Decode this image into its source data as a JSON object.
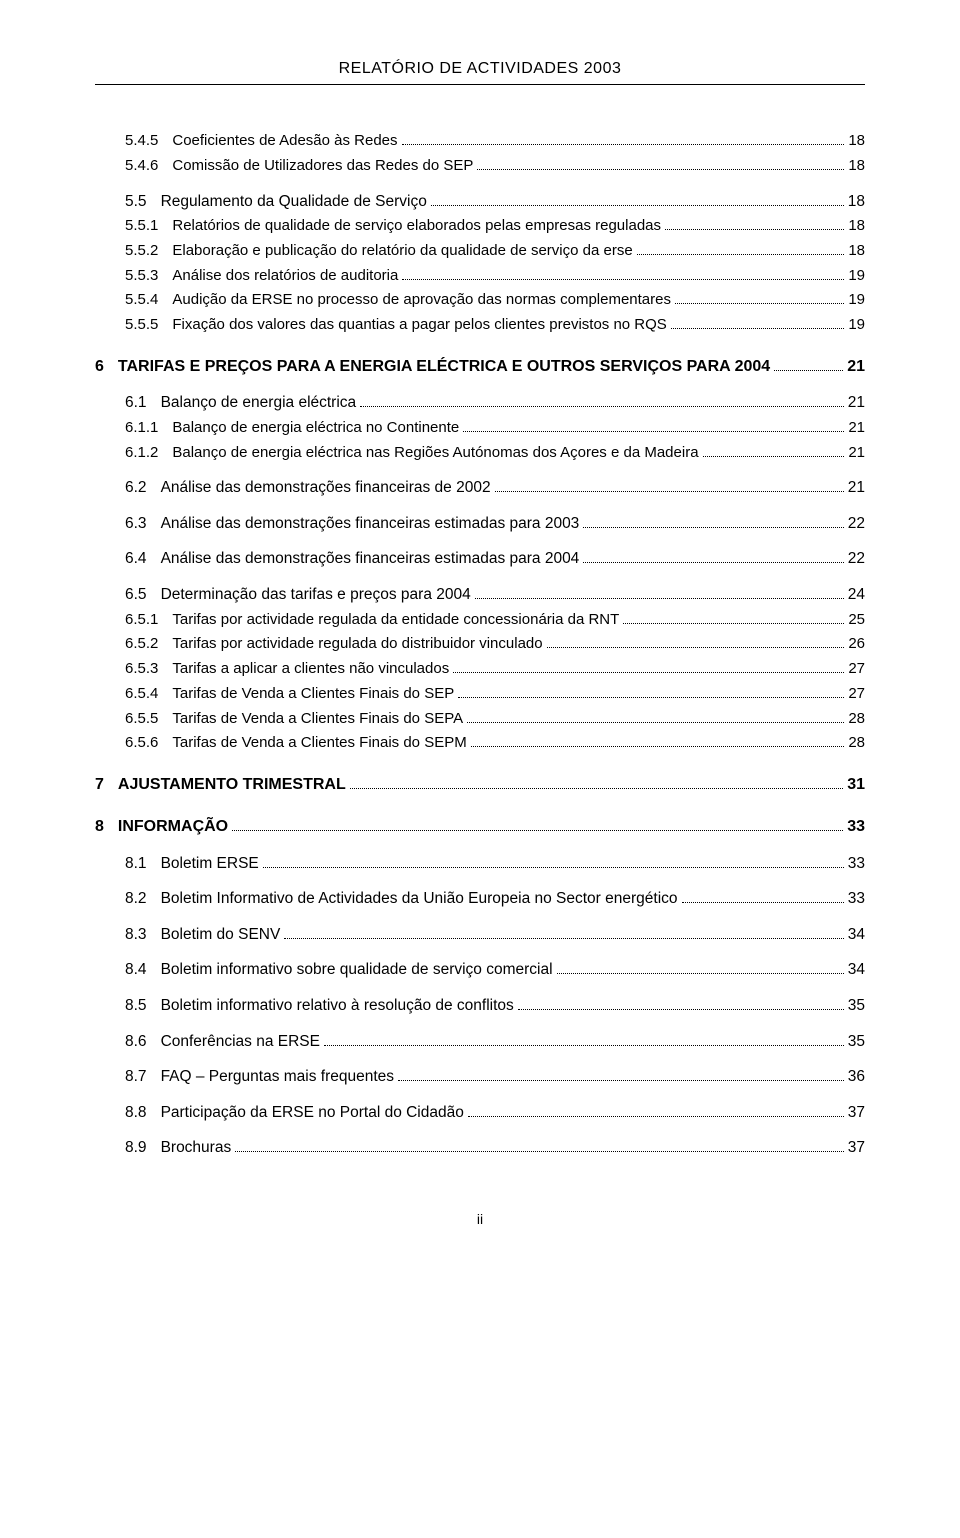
{
  "header": {
    "title": "RELATÓRIO DE ACTIVIDADES 2003"
  },
  "toc": [
    {
      "level": 3,
      "num": "5.4.5",
      "label": "Coeficientes de Adesão às Redes",
      "page": "18"
    },
    {
      "level": 3,
      "num": "5.4.6",
      "label": "Comissão de Utilizadores das Redes do SEP",
      "page": "18"
    },
    {
      "level": 2,
      "num": "5.5",
      "label": "Regulamento da Qualidade de Serviço",
      "page": "18",
      "subsection": true
    },
    {
      "level": 3,
      "num": "5.5.1",
      "label": "Relatórios de qualidade de serviço elaborados pelas empresas reguladas",
      "page": "18"
    },
    {
      "level": 3,
      "num": "5.5.2",
      "label": "Elaboração e publicação do relatório da qualidade de serviço da erse",
      "page": "18"
    },
    {
      "level": 3,
      "num": "5.5.3",
      "label": "Análise dos relatórios de auditoria",
      "page": "19"
    },
    {
      "level": 3,
      "num": "5.5.4",
      "label": "Audição da ERSE no processo de aprovação das normas complementares",
      "page": "19"
    },
    {
      "level": 3,
      "num": "5.5.5",
      "label": "Fixação dos valores das quantias a pagar pelos clientes previstos no RQS",
      "page": "19"
    },
    {
      "level": 1,
      "num": "6",
      "label": "TARIFAS E PREÇOS PARA A ENERGIA ELÉCTRICA E OUTROS SERVIÇOS PARA 2004",
      "page": "21",
      "section": true
    },
    {
      "level": 2,
      "num": "6.1",
      "label": "Balanço de energia eléctrica",
      "page": "21",
      "subsection": true
    },
    {
      "level": 3,
      "num": "6.1.1",
      "label": "Balanço de energia eléctrica no Continente",
      "page": "21"
    },
    {
      "level": 3,
      "num": "6.1.2",
      "label": "Balanço de energia eléctrica nas Regiões Autónomas dos Açores e da Madeira",
      "page": "21"
    },
    {
      "level": 2,
      "num": "6.2",
      "label": "Análise das demonstrações financeiras de 2002",
      "page": "21",
      "subsection": true
    },
    {
      "level": 2,
      "num": "6.3",
      "label": "Análise das demonstrações financeiras estimadas para 2003",
      "page": "22",
      "subsection": true
    },
    {
      "level": 2,
      "num": "6.4",
      "label": "Análise das demonstrações financeiras estimadas para 2004",
      "page": "22",
      "subsection": true
    },
    {
      "level": 2,
      "num": "6.5",
      "label": "Determinação das tarifas e preços para 2004",
      "page": "24",
      "subsection": true
    },
    {
      "level": 3,
      "num": "6.5.1",
      "label": "Tarifas por actividade regulada da entidade concessionária da RNT",
      "page": "25"
    },
    {
      "level": 3,
      "num": "6.5.2",
      "label": "Tarifas por actividade regulada do distribuidor vinculado",
      "page": "26"
    },
    {
      "level": 3,
      "num": "6.5.3",
      "label": "Tarifas a aplicar a clientes não vinculados",
      "page": "27"
    },
    {
      "level": 3,
      "num": "6.5.4",
      "label": "Tarifas de Venda a Clientes Finais do SEP",
      "page": "27"
    },
    {
      "level": 3,
      "num": "6.5.5",
      "label": "Tarifas de Venda a Clientes Finais do SEPA",
      "page": "28"
    },
    {
      "level": 3,
      "num": "6.5.6",
      "label": "Tarifas de Venda a Clientes Finais do SEPM",
      "page": "28"
    },
    {
      "level": 1,
      "num": "7",
      "label": "AJUSTAMENTO TRIMESTRAL",
      "page": "31",
      "section": true
    },
    {
      "level": 1,
      "num": "8",
      "label": "INFORMAÇÃO",
      "page": "33",
      "section": true
    },
    {
      "level": 2,
      "num": "8.1",
      "label": "Boletim ERSE",
      "page": "33",
      "subsection": true
    },
    {
      "level": 2,
      "num": "8.2",
      "label": "Boletim Informativo de Actividades da União Europeia no Sector energético",
      "page": "33",
      "subsection": true
    },
    {
      "level": 2,
      "num": "8.3",
      "label": "Boletim do SENV",
      "page": "34",
      "subsection": true
    },
    {
      "level": 2,
      "num": "8.4",
      "label": "Boletim informativo sobre qualidade de serviço comercial",
      "page": "34",
      "subsection": true
    },
    {
      "level": 2,
      "num": "8.5",
      "label": "Boletim informativo relativo à resolução de conflitos",
      "page": "35",
      "subsection": true
    },
    {
      "level": 2,
      "num": "8.6",
      "label": "Conferências na ERSE",
      "page": "35",
      "subsection": true
    },
    {
      "level": 2,
      "num": "8.7",
      "label": "FAQ – Perguntas mais frequentes",
      "page": "36",
      "subsection": true
    },
    {
      "level": 2,
      "num": "8.8",
      "label": "Participação da ERSE no Portal do Cidadão",
      "page": "37",
      "subsection": true
    },
    {
      "level": 2,
      "num": "8.9",
      "label": "Brochuras",
      "page": "37",
      "subsection": true
    }
  ],
  "footer": {
    "pageNumber": "ii"
  }
}
